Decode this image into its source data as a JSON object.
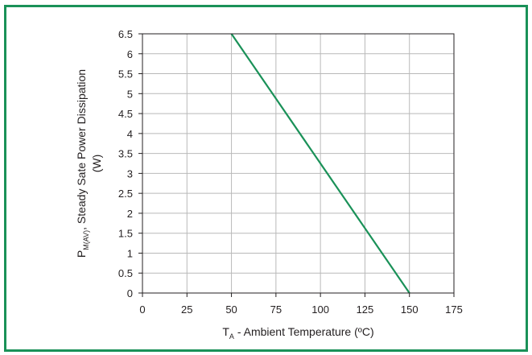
{
  "chart_data": {
    "type": "line",
    "title": "",
    "x_ticks": [
      0,
      25,
      50,
      75,
      100,
      125,
      150,
      175
    ],
    "y_ticks": [
      0,
      0.5,
      1,
      1.5,
      2,
      2.5,
      3,
      3.5,
      4,
      4.5,
      5,
      5.5,
      6,
      6.5
    ],
    "y_tick_labels": [
      "0",
      "0.5",
      "1",
      "1.5",
      "2",
      "2.5",
      "3",
      "3.5",
      "4",
      "4.5",
      "5",
      "5.5",
      "6",
      "6.5"
    ],
    "xlim": [
      0,
      175
    ],
    "ylim": [
      0,
      6.5
    ],
    "grid": true,
    "xlabel": {
      "symbol": "T",
      "subscript": "A",
      "text": " - Ambient Temperature (ºC)"
    },
    "ylabel": {
      "symbol": "P",
      "subscript": "M(AV)",
      "text": ", Steady Sate Power Dissipation",
      "line2": "(W)"
    },
    "series": [
      {
        "x": [
          50,
          150
        ],
        "y": [
          6.5,
          0
        ],
        "color": "#1a9158"
      }
    ],
    "colors": {
      "frame": "#1a9158",
      "grid": "#b9b9b9",
      "axis": "#231f20"
    }
  }
}
